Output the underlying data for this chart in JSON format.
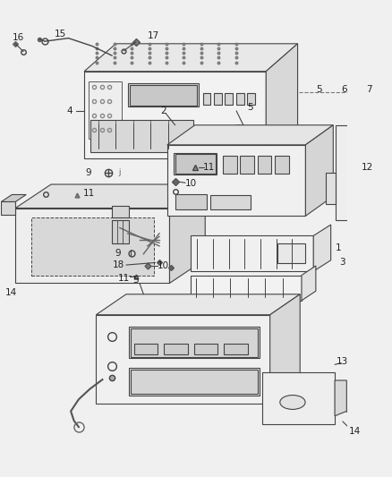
{
  "bg_color": "#f0f0f0",
  "line_color": "#444444",
  "fig_width": 4.38,
  "fig_height": 5.33,
  "dpi": 100
}
